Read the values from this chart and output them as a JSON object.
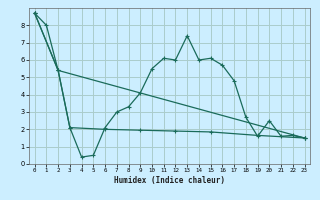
{
  "xlabel": "Humidex (Indice chaleur)",
  "background_color": "#cceeff",
  "grid_color": "#aacccc",
  "line_color": "#1a6b5a",
  "xlim": [
    -0.5,
    23.5
  ],
  "ylim": [
    0,
    9
  ],
  "yticks": [
    0,
    1,
    2,
    3,
    4,
    5,
    6,
    7,
    8
  ],
  "xticks": [
    0,
    1,
    2,
    3,
    4,
    5,
    6,
    7,
    8,
    9,
    10,
    11,
    12,
    13,
    14,
    15,
    16,
    17,
    18,
    19,
    20,
    21,
    22,
    23
  ],
  "line1_x": [
    0,
    1,
    2,
    3,
    4,
    5,
    6,
    7,
    8,
    9,
    10,
    11,
    12,
    13,
    14,
    15,
    16,
    17,
    18,
    19,
    20,
    21,
    22,
    23
  ],
  "line1_y": [
    8.7,
    8.0,
    5.4,
    2.1,
    0.4,
    0.5,
    2.1,
    3.0,
    3.3,
    4.1,
    5.5,
    6.1,
    6.0,
    7.4,
    6.0,
    6.1,
    5.7,
    4.8,
    2.7,
    1.6,
    2.5,
    1.6,
    1.65,
    1.5
  ],
  "line2_x": [
    0,
    2,
    23
  ],
  "line2_y": [
    8.7,
    5.4,
    1.5
  ],
  "line3_x": [
    0,
    2,
    3,
    6,
    9,
    12,
    15,
    19,
    23
  ],
  "line3_y": [
    8.7,
    5.4,
    2.1,
    2.0,
    1.95,
    1.9,
    1.85,
    1.65,
    1.5
  ]
}
